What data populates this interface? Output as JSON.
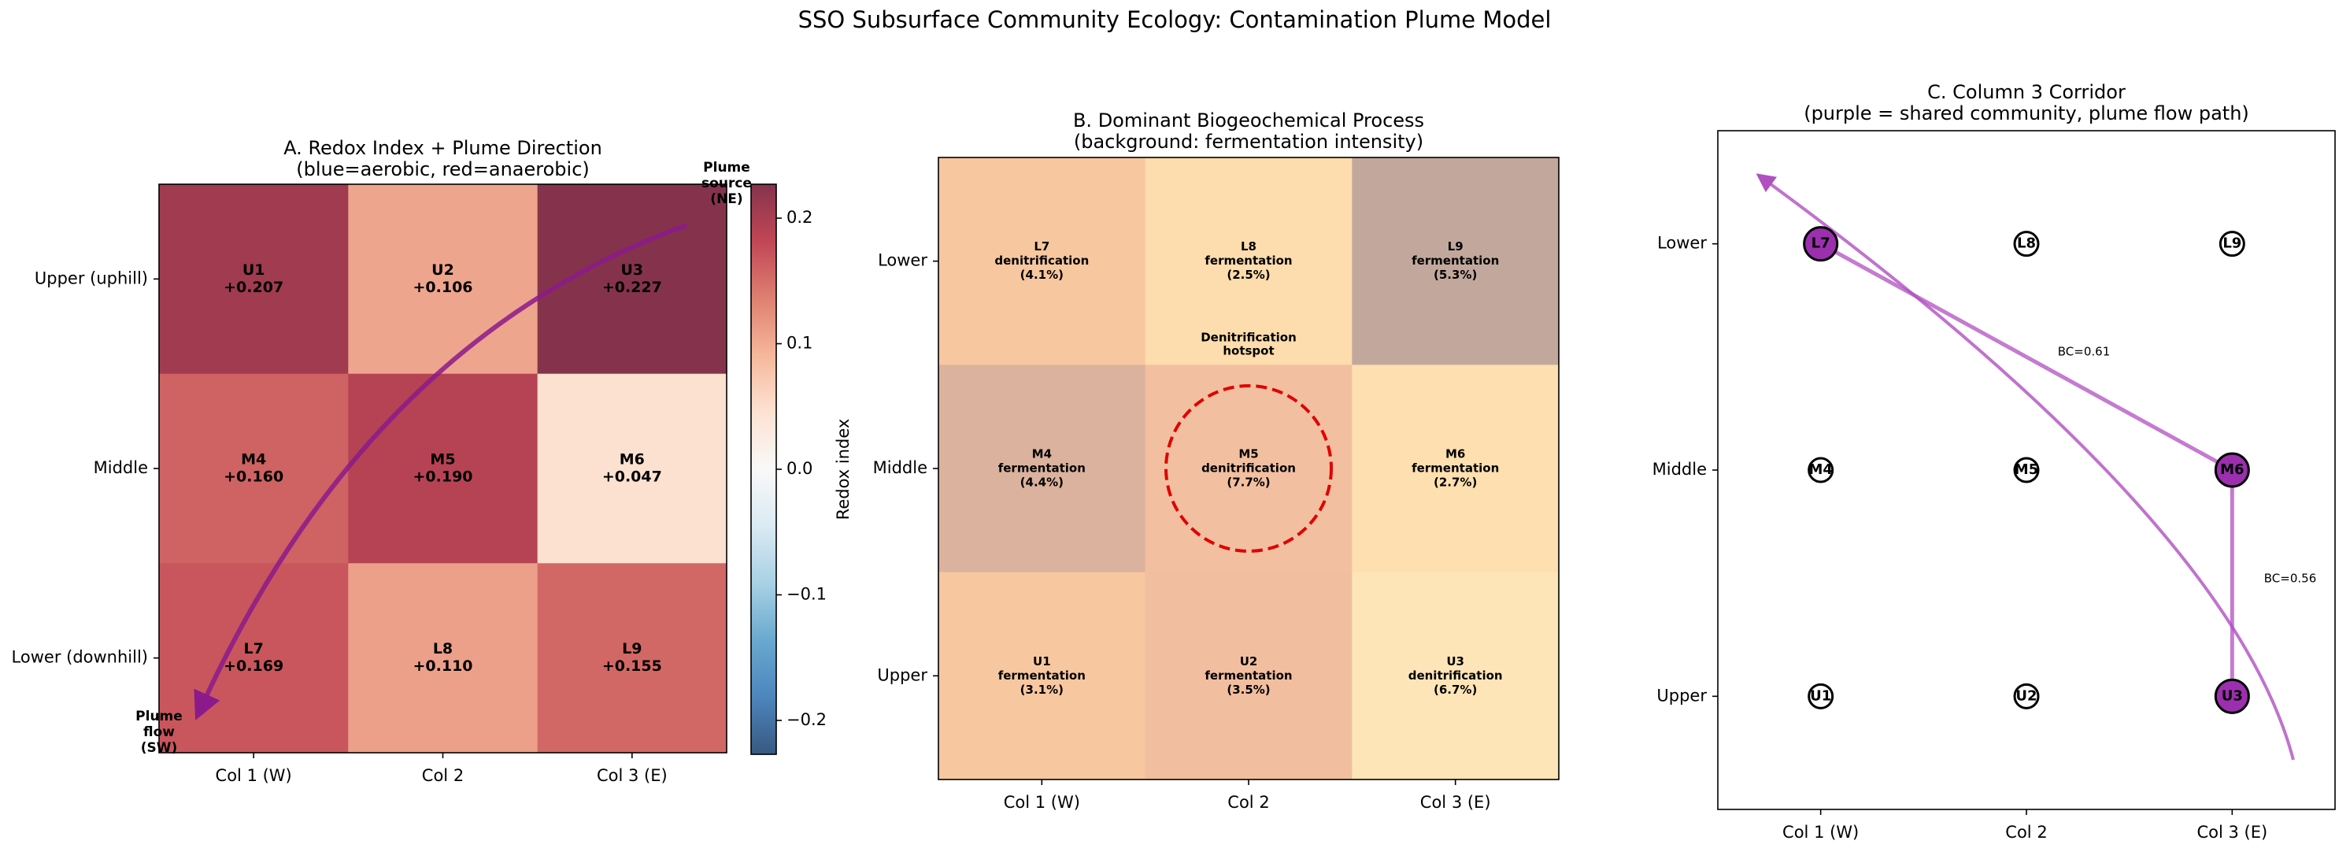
{
  "title": "SSO Subsurface Community Ecology: Contamination Plume Model",
  "chart_data": [
    {
      "type": "heatmap",
      "title": [
        "A. Redox Index + Plume Direction",
        "(blue=aerobic, red=anaerobic)"
      ],
      "categories": [
        "Col 1 (W)",
        "Col 2",
        "Col 3 (E)"
      ],
      "rows": [
        "Upper (uphill)",
        "Middle",
        "Lower (downhill)"
      ],
      "cell_names": [
        [
          "U1",
          "U2",
          "U3"
        ],
        [
          "M4",
          "M5",
          "M6"
        ],
        [
          "L7",
          "L8",
          "L9"
        ]
      ],
      "values": [
        [
          0.207,
          0.106,
          0.227
        ],
        [
          0.16,
          0.19,
          0.047
        ],
        [
          0.169,
          0.11,
          0.155
        ]
      ],
      "value_labels": [
        [
          "+0.207",
          "+0.106",
          "+0.227"
        ],
        [
          "+0.160",
          "+0.190",
          "+0.047"
        ],
        [
          "+0.169",
          "+0.110",
          "+0.155"
        ]
      ],
      "colormap": "RdBu_r",
      "alpha": 0.8,
      "colorbar_label": "Redox index",
      "clim": [
        -0.227,
        0.227
      ],
      "cticks": [
        {
          "value": -0.2,
          "label": "−0.2"
        },
        {
          "value": -0.1,
          "label": "−0.1"
        },
        {
          "value": 0,
          "label": "0.0"
        },
        0.1,
        0.2
      ],
      "annotations": [
        {
          "text": [
            "Plume",
            "source",
            "(NE)"
          ]
        },
        {
          "text": [
            "Plume",
            "flow",
            "(SW)"
          ]
        }
      ],
      "arrow_color": "#8b1a8b"
    },
    {
      "type": "category_grid",
      "title": [
        "B. Dominant Biogeochemical Process",
        "(background: fermentation intensity)"
      ],
      "categories": [
        "Col 1 (W)",
        "Col 2",
        "Col 3 (E)"
      ],
      "rows": [
        "Lower",
        "Middle",
        "Upper"
      ],
      "cell_names": [
        [
          "L7",
          "L8",
          "L9"
        ],
        [
          "M4",
          "M5",
          "M6"
        ],
        [
          "U1",
          "U2",
          "U3"
        ]
      ],
      "processes": [
        [
          "denitrification",
          "fermentation",
          "fermentation"
        ],
        [
          "fermentation",
          "denitrification",
          "fermentation"
        ],
        [
          "fermentation",
          "fermentation",
          "denitrification"
        ]
      ],
      "values": [
        [
          4.1,
          2.5,
          5.3
        ],
        [
          4.4,
          7.7,
          2.7
        ],
        [
          3.1,
          3.5,
          6.7
        ]
      ],
      "value_labels": [
        [
          "(4.1%)",
          "(2.5%)",
          "(5.3%)"
        ],
        [
          "(4.4%)",
          "(7.7%)",
          "(2.7%)"
        ],
        [
          "(3.1%)",
          "(3.5%)",
          "(6.7%)"
        ]
      ],
      "colors": [
        [
          "#f7c7a0",
          "#fddcad",
          "#c2a89c"
        ],
        [
          "#dbb29d",
          "#f2bfa0",
          "#fddfb0"
        ],
        [
          "#f7c7a0",
          "#f2bea0",
          "#fde5b8"
        ]
      ],
      "annotation": {
        "text": [
          "Denitrification",
          "hotspot"
        ],
        "color": "#e00000"
      }
    },
    {
      "type": "network",
      "title": [
        "C. Column 3 Corridor",
        "(purple = shared community, plume flow path)"
      ],
      "categories": [
        "Col 1 (W)",
        "Col 2",
        "Col 3 (E)"
      ],
      "rows": [
        "Lower",
        "Middle",
        "Upper"
      ],
      "cell_names": [
        [
          "L7",
          "L8",
          "L9"
        ],
        [
          "M4",
          "M5",
          "M6"
        ],
        [
          "U1",
          "U2",
          "U3"
        ]
      ],
      "shared": [
        [
          true,
          false,
          false
        ],
        [
          false,
          false,
          true
        ],
        [
          false,
          false,
          true
        ]
      ],
      "shared_color": "#9b2fae",
      "edges": [
        {
          "from": "L7",
          "to": "M6",
          "value": 0.61,
          "value_label": "BC=0.61"
        },
        {
          "from": "M6",
          "to": "U3",
          "value": 0.56,
          "value_label": "BC=0.56"
        }
      ],
      "edge_color": "#b04fc0"
    }
  ]
}
